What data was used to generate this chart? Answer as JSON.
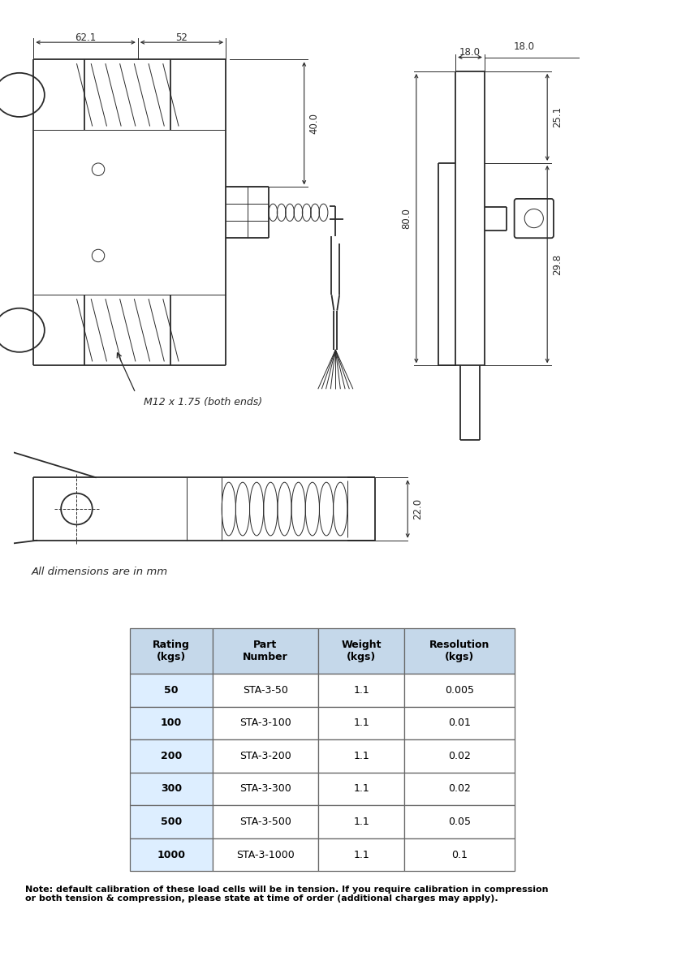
{
  "bg_color": "#ffffff",
  "line_color": "#2a2a2a",
  "dim_color": "#2a2a2a",
  "table_header_bg": "#c5d8ea",
  "table_row_bg": "#ddeeff",
  "table_border": "#666666",
  "dim_font_size": 8.5,
  "label_font_size": 9,
  "note_font_size": 8,
  "table_font_size": 9,
  "dims": {
    "top_width1": "62.1",
    "top_width2": "52",
    "right_height1": "18.0",
    "right_dim1": "25.1",
    "right_dim2": "29.8",
    "right_total": "80.0",
    "center_height": "40.0",
    "bottom_height": "22.0"
  },
  "thread_label": "M12 x 1.75 (both ends)",
  "dim_note": "All dimensions are in mm",
  "table_headers": [
    "Rating\n(kgs)",
    "Part\nNumber",
    "Weight\n(kgs)",
    "Resolution\n(kgs)"
  ],
  "table_rows": [
    [
      "50",
      "STA-3-50",
      "1.1",
      "0.005"
    ],
    [
      "100",
      "STA-3-100",
      "1.1",
      "0.01"
    ],
    [
      "200",
      "STA-3-200",
      "1.1",
      "0.02"
    ],
    [
      "300",
      "STA-3-300",
      "1.1",
      "0.02"
    ],
    [
      "500",
      "STA-3-500",
      "1.1",
      "0.05"
    ],
    [
      "1000",
      "STA-3-1000",
      "1.1",
      "0.1"
    ]
  ],
  "note_text": "Note: default calibration of these load cells will be in tension. If you require calibration in compression\nor both tension & compression, please state at time of order (additional charges may apply)."
}
